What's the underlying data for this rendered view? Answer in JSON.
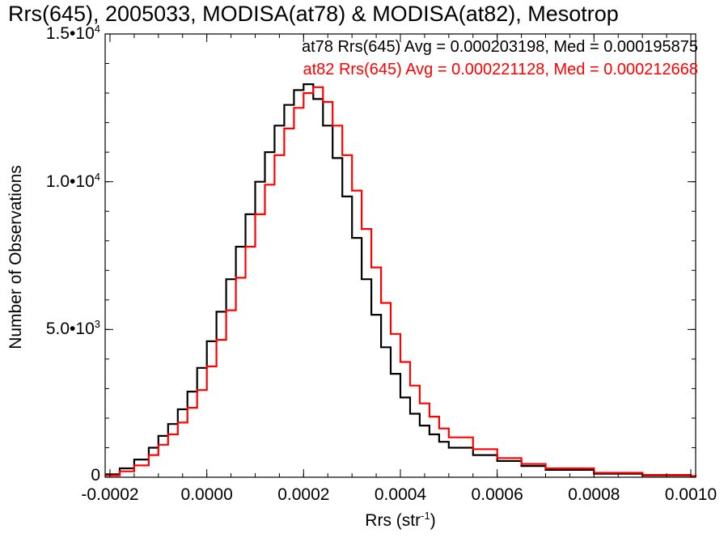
{
  "title": "Rrs(645), 2005033, MODISA(at78) & MODISA(at82), Mesotrop",
  "colors": {
    "at78": "#000000",
    "at82": "#ff0000",
    "axis": "#000000",
    "background": "#ffffff"
  },
  "annotations": [
    {
      "text": "at78 Rrs(645) Avg = 0.000203198, Med = 0.000195875",
      "color": "#000000"
    },
    {
      "text": "at82 Rrs(645) Avg = 0.000221128, Med = 0.000212668",
      "color": "#ff0000"
    }
  ],
  "chart_data": {
    "type": "line",
    "subtype": "step-histogram",
    "title": "Rrs(645), 2005033, MODISA(at78) & MODISA(at82), Mesotrop",
    "xlabel": {
      "base": "Rrs (str",
      "sup": "-1",
      "close": ")"
    },
    "ylabel": "Number of Observations",
    "xlim": [
      -0.00021,
      0.00101
    ],
    "ylim": [
      0,
      15000
    ],
    "x_ticks": [
      {
        "value": -0.0002,
        "label": "-0.0002"
      },
      {
        "value": 0.0,
        "label": "0.0000"
      },
      {
        "value": 0.0002,
        "label": "0.0002"
      },
      {
        "value": 0.0004,
        "label": "0.0004"
      },
      {
        "value": 0.0006,
        "label": "0.0006"
      },
      {
        "value": 0.0008,
        "label": "0.0008"
      },
      {
        "value": 0.001,
        "label": "0.0010"
      }
    ],
    "y_ticks": [
      {
        "value": 0,
        "base": "0",
        "sup": ""
      },
      {
        "value": 5000,
        "base": "5.0•10",
        "sup": "3"
      },
      {
        "value": 10000,
        "base": "1.0•10",
        "sup": "4"
      },
      {
        "value": 15000,
        "base": "1.5•10",
        "sup": "4"
      }
    ],
    "grid": false,
    "series": [
      {
        "name": "at78",
        "color": "#000000",
        "x": [
          -0.00021,
          -0.00018,
          -0.00015,
          -0.00012,
          -0.0001,
          -8e-05,
          -6e-05,
          -4e-05,
          -2e-05,
          0.0,
          2e-05,
          4e-05,
          6e-05,
          8e-05,
          0.0001,
          0.00012,
          0.00014,
          0.00016,
          0.00018,
          0.0002,
          0.00022,
          0.00024,
          0.00026,
          0.00028,
          0.0003,
          0.00032,
          0.00034,
          0.00036,
          0.00038,
          0.0004,
          0.00042,
          0.00044,
          0.00046,
          0.00048,
          0.0005,
          0.00055,
          0.0006,
          0.00065,
          0.0007,
          0.0008,
          0.0009,
          0.001,
          0.00101
        ],
        "y": [
          100,
          300,
          600,
          1000,
          1400,
          1800,
          2300,
          2900,
          3700,
          4600,
          5600,
          6700,
          7800,
          8900,
          10000,
          11000,
          11900,
          12600,
          13100,
          13300,
          12800,
          11900,
          10800,
          9500,
          8100,
          6700,
          5500,
          4400,
          3500,
          2700,
          2150,
          1750,
          1450,
          1200,
          1000,
          750,
          550,
          380,
          250,
          120,
          60,
          30,
          20
        ]
      },
      {
        "name": "at82",
        "color": "#ff0000",
        "x": [
          -0.00021,
          -0.00018,
          -0.00015,
          -0.00012,
          -0.0001,
          -8e-05,
          -6e-05,
          -4e-05,
          -2e-05,
          0.0,
          2e-05,
          4e-05,
          6e-05,
          8e-05,
          0.0001,
          0.00012,
          0.00014,
          0.00016,
          0.00018,
          0.0002,
          0.00022,
          0.00024,
          0.00026,
          0.00028,
          0.0003,
          0.00032,
          0.00034,
          0.00036,
          0.00038,
          0.0004,
          0.00042,
          0.00044,
          0.00046,
          0.00048,
          0.0005,
          0.00055,
          0.0006,
          0.00065,
          0.0007,
          0.0008,
          0.0009,
          0.001,
          0.00101
        ],
        "y": [
          60,
          200,
          400,
          750,
          1100,
          1450,
          1850,
          2350,
          2950,
          3750,
          4650,
          5650,
          6750,
          7800,
          8900,
          9900,
          10900,
          11800,
          12500,
          13000,
          13200,
          12700,
          11900,
          10900,
          9700,
          8400,
          7100,
          5900,
          4850,
          3900,
          3100,
          2500,
          2050,
          1650,
          1350,
          950,
          650,
          450,
          300,
          150,
          80,
          40,
          25
        ]
      }
    ]
  }
}
